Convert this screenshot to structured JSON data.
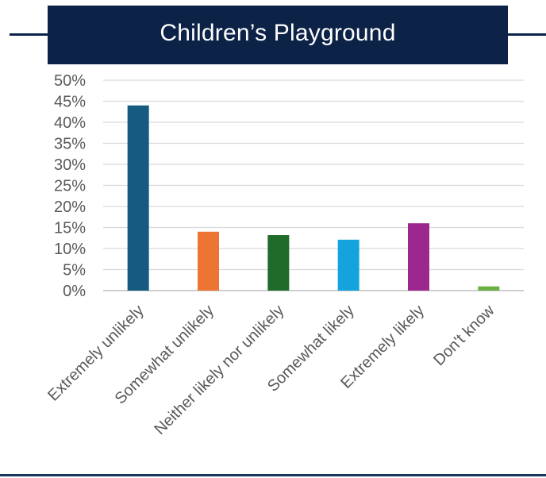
{
  "title": "Children’s Playground",
  "colors": {
    "header_bg": "#0c2247",
    "grid": "#d9d9d9",
    "axis_text": "#595959"
  },
  "chart_data": {
    "type": "bar",
    "title": "Children’s Playground",
    "categories": [
      "Extremely unlikely",
      "Somewhat unlikely",
      "Neither likely nor unlikely",
      "Somewhat likely",
      "Extremely likely",
      "Don't know"
    ],
    "values": [
      44,
      14,
      13.2,
      12.1,
      16,
      1
    ],
    "bar_colors": [
      "#155a80",
      "#ed7533",
      "#1e6b2a",
      "#15a3dd",
      "#9b288f",
      "#6ab042"
    ],
    "ylim": [
      0,
      50
    ],
    "yticks": [
      0,
      5,
      10,
      15,
      20,
      25,
      30,
      35,
      40,
      45,
      50
    ],
    "ytick_format": "percent",
    "grid": true,
    "legend": "none"
  }
}
